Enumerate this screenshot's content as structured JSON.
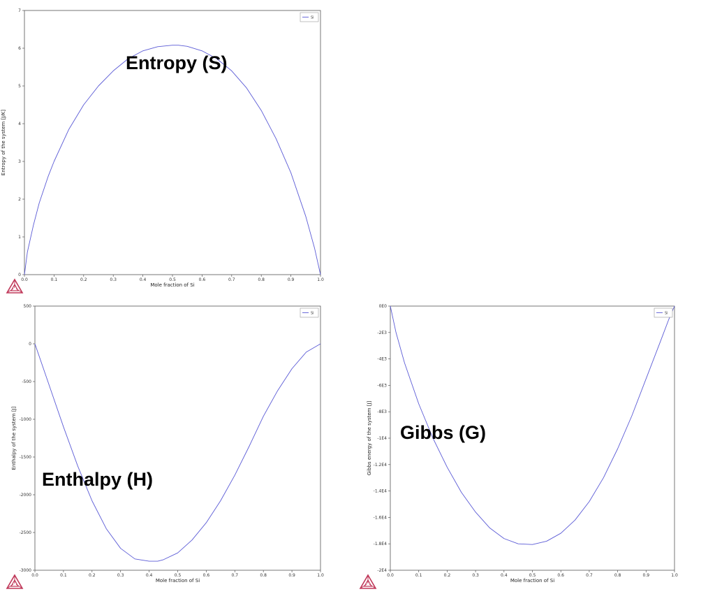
{
  "chart_data": [
    {
      "id": "entropy",
      "type": "line",
      "annotation": "Entropy (S)",
      "xlabel": "Mole fraction of Si",
      "ylabel": "Entropy of the system [J/K]",
      "xlim": [
        0,
        1
      ],
      "ylim": [
        0,
        7
      ],
      "xticks": [
        "0.0",
        "0.1",
        "0.2",
        "0.3",
        "0.4",
        "0.5",
        "0.6",
        "0.7",
        "0.8",
        "0.9",
        "1.0"
      ],
      "yticks": [
        "0",
        "1",
        "2",
        "3",
        "4",
        "5",
        "6",
        "7"
      ],
      "legend": "top-right",
      "grid": false,
      "series": [
        {
          "name": "Si",
          "color": "#5b5bd6",
          "x": [
            0,
            0.01,
            0.03,
            0.05,
            0.08,
            0.1,
            0.15,
            0.2,
            0.25,
            0.3,
            0.35,
            0.4,
            0.45,
            0.5,
            0.52,
            0.55,
            0.6,
            0.65,
            0.7,
            0.75,
            0.8,
            0.85,
            0.9,
            0.95,
            0.98,
            1.0
          ],
          "y": [
            0,
            0.6,
            1.3,
            1.9,
            2.6,
            3.0,
            3.85,
            4.5,
            5.0,
            5.4,
            5.72,
            5.93,
            6.04,
            6.08,
            6.08,
            6.05,
            5.93,
            5.72,
            5.4,
            4.95,
            4.35,
            3.6,
            2.7,
            1.55,
            0.7,
            0
          ]
        }
      ]
    },
    {
      "id": "enthalpy",
      "type": "line",
      "annotation": "Enthalpy (H)",
      "xlabel": "Mole fraction of Si",
      "ylabel": "Enthalpy of the system [J]",
      "xlim": [
        0,
        1
      ],
      "ylim": [
        -3000,
        500
      ],
      "xticks": [
        "0.0",
        "0.1",
        "0.2",
        "0.3",
        "0.4",
        "0.5",
        "0.6",
        "0.7",
        "0.8",
        "0.9",
        "1.0"
      ],
      "yticks": [
        "500",
        "0",
        "-500",
        "-1000",
        "-1500",
        "-2000",
        "-2500",
        "-3000"
      ],
      "legend": "top-right",
      "grid": false,
      "series": [
        {
          "name": "Si",
          "color": "#5b5bd6",
          "x": [
            0,
            0.05,
            0.1,
            0.15,
            0.2,
            0.25,
            0.3,
            0.35,
            0.4,
            0.43,
            0.45,
            0.5,
            0.55,
            0.6,
            0.65,
            0.7,
            0.75,
            0.8,
            0.85,
            0.9,
            0.95,
            1.0
          ],
          "y": [
            0,
            -550,
            -1100,
            -1620,
            -2080,
            -2450,
            -2710,
            -2850,
            -2880,
            -2880,
            -2860,
            -2770,
            -2600,
            -2370,
            -2080,
            -1740,
            -1360,
            -960,
            -620,
            -330,
            -110,
            0
          ]
        }
      ]
    },
    {
      "id": "gibbs",
      "type": "line",
      "annotation": "Gibbs (G)",
      "xlabel": "Mole fraction of Si",
      "ylabel": "Gibbs energy of the system [J]",
      "xlim": [
        0,
        1
      ],
      "ylim": [
        -20000,
        0
      ],
      "xticks": [
        "0.0",
        "0.1",
        "0.2",
        "0.3",
        "0.4",
        "0.5",
        "0.6",
        "0.7",
        "0.8",
        "0.9",
        "1.0"
      ],
      "yticks": [
        "0E0",
        "-2E3",
        "-4E3",
        "-6E3",
        "-8E3",
        "-1E4",
        "-1.2E4",
        "-1.4E4",
        "-1.6E4",
        "-1.8E4",
        "-2E4"
      ],
      "legend": "top-right",
      "grid": false,
      "series": [
        {
          "name": "Si",
          "color": "#5b5bd6",
          "x": [
            0,
            0.02,
            0.05,
            0.1,
            0.15,
            0.2,
            0.25,
            0.3,
            0.35,
            0.4,
            0.45,
            0.5,
            0.55,
            0.6,
            0.65,
            0.7,
            0.75,
            0.8,
            0.85,
            0.9,
            0.95,
            0.98,
            1.0
          ],
          "y": [
            0,
            -2000,
            -4300,
            -7400,
            -10000,
            -12200,
            -14100,
            -15600,
            -16800,
            -17600,
            -18000,
            -18050,
            -17800,
            -17200,
            -16200,
            -14800,
            -13000,
            -10800,
            -8300,
            -5500,
            -2700,
            -1000,
            0
          ]
        }
      ]
    }
  ]
}
